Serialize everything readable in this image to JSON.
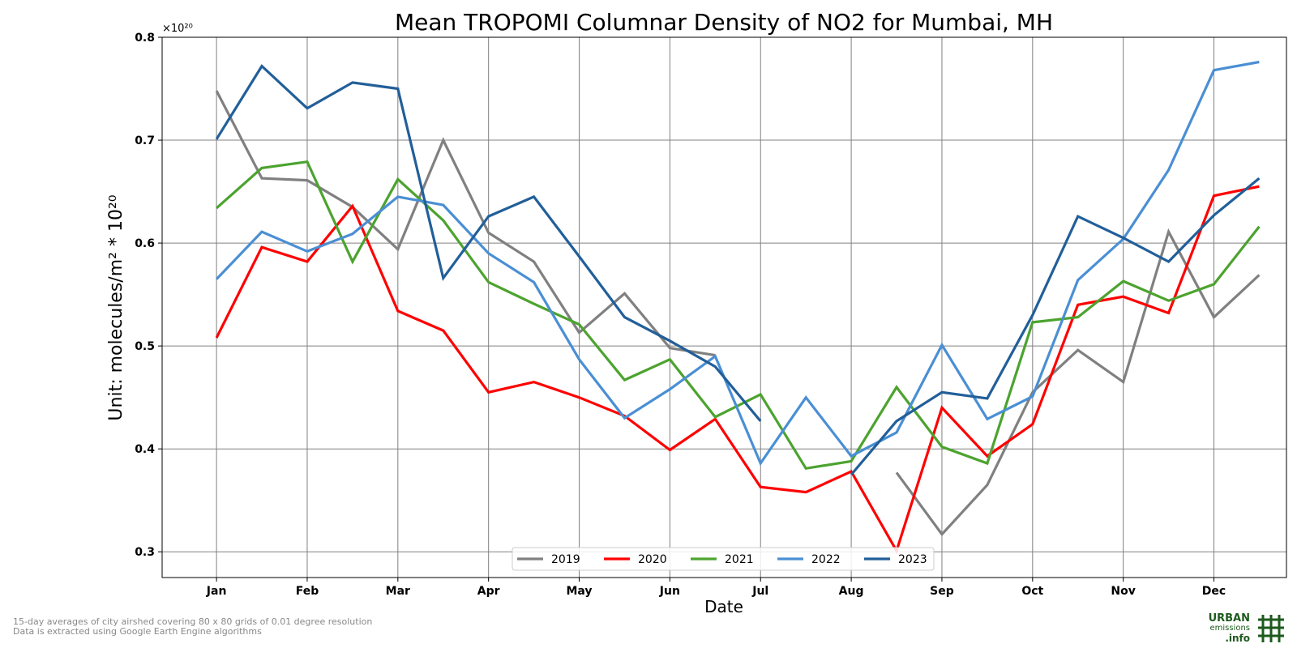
{
  "chart_data": {
    "type": "line",
    "title": "Mean TROPOMI Columnar Density of NO2 for Mumbai, MH",
    "xlabel": "Date",
    "ylabel": "Unit: molecules/m² * 10²⁰",
    "y_multiplier": "×10²⁰",
    "x_ticks": [
      "Jan",
      "Feb",
      "Mar",
      "Apr",
      "May",
      "Jun",
      "Jul",
      "Aug",
      "Sep",
      "Oct",
      "Nov",
      "Dec"
    ],
    "y_ticks": [
      "0.3",
      "0.4",
      "0.5",
      "0.6",
      "0.7",
      "0.8"
    ],
    "ylim": [
      0.275,
      0.8
    ],
    "xlim": [
      0.4,
      12.8
    ],
    "x": [
      1,
      1.5,
      2,
      2.5,
      3,
      3.5,
      4,
      4.5,
      5,
      5.5,
      6,
      6.5,
      7,
      7.5,
      8,
      8.5,
      9,
      9.5,
      10,
      10.5,
      11,
      11.5,
      12,
      12.5
    ],
    "grid": true,
    "legend_position": "bottom-center",
    "series": [
      {
        "name": "2019",
        "color": "#808080",
        "values": [
          0.748,
          0.663,
          0.661,
          0.635,
          0.594,
          0.7,
          0.61,
          0.582,
          0.513,
          0.551,
          0.498,
          0.491,
          null,
          null,
          null,
          0.377,
          0.317,
          0.365,
          0.455,
          0.496,
          0.465,
          0.611,
          0.528,
          0.569
        ]
      },
      {
        "name": "2020",
        "color": "#ff0000",
        "values": [
          0.508,
          0.596,
          0.582,
          0.636,
          0.534,
          0.515,
          0.455,
          0.465,
          0.45,
          0.432,
          0.399,
          0.429,
          0.363,
          0.358,
          0.378,
          0.301,
          0.44,
          0.393,
          0.424,
          0.54,
          0.548,
          0.532,
          0.646,
          0.655
        ]
      },
      {
        "name": "2021",
        "color": "#4ca32f",
        "values": [
          0.634,
          0.673,
          0.679,
          0.582,
          0.662,
          0.622,
          0.562,
          0.541,
          0.521,
          0.467,
          0.487,
          0.431,
          0.453,
          0.381,
          0.388,
          0.46,
          0.402,
          0.386,
          0.523,
          0.528,
          0.563,
          0.544,
          0.56,
          0.616
        ]
      },
      {
        "name": "2022",
        "color": "#4a8fd4",
        "values": [
          0.565,
          0.611,
          0.592,
          0.609,
          0.645,
          0.637,
          0.59,
          0.562,
          0.487,
          0.43,
          0.458,
          0.49,
          0.386,
          0.45,
          0.393,
          0.416,
          0.501,
          0.429,
          0.451,
          0.564,
          0.604,
          0.671,
          0.768,
          0.776
        ]
      },
      {
        "name": "2023",
        "color": "#225f99",
        "values": [
          0.701,
          0.772,
          0.731,
          0.756,
          0.75,
          0.566,
          0.626,
          0.645,
          0.587,
          0.528,
          0.505,
          0.48,
          0.427,
          null,
          0.375,
          0.427,
          0.455,
          0.449,
          0.53,
          0.626,
          0.605,
          0.582,
          0.627,
          0.663
        ]
      }
    ]
  },
  "footnote": {
    "line1": "15-day averages of city airshed covering 80 x 80 grids of 0.01 degree resolution",
    "line2": "Data is extracted using Google Earth Engine algorithms"
  },
  "logo": {
    "line1": "URBAN",
    "line2": "emissions",
    "line3": ".info",
    "color": "#1e5a1e"
  }
}
